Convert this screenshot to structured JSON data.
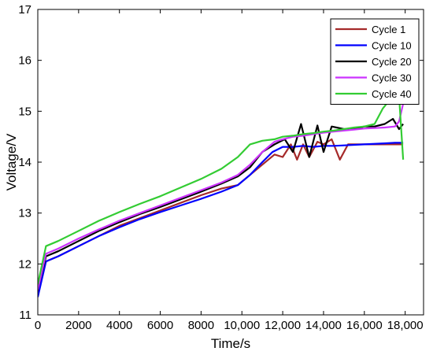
{
  "chart_data": {
    "type": "line",
    "title": "",
    "xlabel": "Time/s",
    "ylabel": "Voltage/V",
    "xlim": [
      0,
      18900
    ],
    "ylim": [
      11,
      17
    ],
    "xticks": [
      0,
      2000,
      4000,
      6000,
      8000,
      10000,
      12000,
      14000,
      16000,
      18000
    ],
    "xtick_labels": [
      "0",
      "2000",
      "4000",
      "6000",
      "8000",
      "10,000",
      "12,000",
      "14,000",
      "16,000",
      "18,000"
    ],
    "yticks": [
      11,
      12,
      13,
      14,
      15,
      16,
      17
    ],
    "ytick_labels": [
      "11",
      "12",
      "13",
      "14",
      "15",
      "16",
      "17"
    ],
    "grid": false,
    "legend": {
      "position": "top-right"
    },
    "series": [
      {
        "name": "Cycle 1",
        "color": "#a52a2a",
        "x": [
          0,
          400,
          1000,
          2000,
          3000,
          4000,
          5000,
          6000,
          7000,
          8000,
          9000,
          9800,
          10400,
          11000,
          11600,
          12000,
          12400,
          12700,
          13000,
          13300,
          13700,
          14000,
          14400,
          14800,
          15200,
          15600,
          16000,
          16500,
          17000,
          17500,
          17900
        ],
        "y": [
          11.45,
          12.05,
          12.15,
          12.35,
          12.55,
          12.75,
          12.9,
          13.05,
          13.2,
          13.35,
          13.48,
          13.55,
          13.75,
          13.95,
          14.15,
          14.1,
          14.35,
          14.05,
          14.35,
          14.1,
          14.4,
          14.35,
          14.45,
          14.05,
          14.35,
          14.35,
          14.35,
          14.35,
          14.35,
          14.35,
          14.35
        ]
      },
      {
        "name": "Cycle 10",
        "color": "#0000ff",
        "x": [
          0,
          400,
          1000,
          2000,
          3000,
          4000,
          5000,
          6000,
          7000,
          8000,
          9000,
          9800,
          10400,
          11000,
          11500,
          12000,
          12500,
          13000,
          13500,
          14000,
          14500,
          15000,
          16000,
          17000,
          17500,
          17900
        ],
        "y": [
          11.35,
          12.05,
          12.15,
          12.35,
          12.55,
          12.72,
          12.88,
          13.02,
          13.15,
          13.28,
          13.42,
          13.55,
          13.75,
          14.0,
          14.2,
          14.3,
          14.3,
          14.32,
          14.3,
          14.32,
          14.32,
          14.33,
          14.35,
          14.37,
          14.38,
          14.38
        ]
      },
      {
        "name": "Cycle 20",
        "color": "#000000",
        "x": [
          0,
          400,
          1000,
          2000,
          3000,
          4000,
          5000,
          6000,
          7000,
          8000,
          9000,
          9800,
          10400,
          11000,
          11600,
          12100,
          12500,
          12900,
          13300,
          13700,
          14000,
          14400,
          15000,
          15500,
          16000,
          16500,
          17000,
          17400,
          17700,
          17900
        ],
        "y": [
          11.5,
          12.15,
          12.25,
          12.45,
          12.65,
          12.82,
          12.98,
          13.12,
          13.27,
          13.42,
          13.58,
          13.72,
          13.9,
          14.2,
          14.35,
          14.45,
          14.2,
          14.75,
          14.1,
          14.72,
          14.2,
          14.7,
          14.65,
          14.65,
          14.7,
          14.7,
          14.75,
          14.85,
          14.65,
          14.75
        ]
      },
      {
        "name": "Cycle 30",
        "color": "#cc33ff",
        "x": [
          0,
          400,
          1000,
          2000,
          3000,
          4000,
          5000,
          6000,
          7000,
          8000,
          9000,
          9800,
          10400,
          11000,
          11600,
          12000,
          12500,
          13000,
          13500,
          14000,
          14500,
          15000,
          15500,
          16000,
          16500,
          17000,
          17500,
          17700,
          17900
        ],
        "y": [
          11.5,
          12.2,
          12.3,
          12.5,
          12.68,
          12.85,
          13.0,
          13.15,
          13.3,
          13.45,
          13.6,
          13.75,
          13.95,
          14.2,
          14.4,
          14.45,
          14.5,
          14.52,
          14.55,
          14.58,
          14.6,
          14.62,
          14.64,
          14.66,
          14.67,
          14.68,
          14.7,
          14.8,
          15.15
        ]
      },
      {
        "name": "Cycle 40",
        "color": "#33cc33",
        "x": [
          0,
          400,
          1000,
          2000,
          3000,
          4000,
          5000,
          6000,
          7000,
          8000,
          9000,
          9800,
          10400,
          11000,
          11600,
          12000,
          12500,
          13000,
          13500,
          14000,
          14500,
          15000,
          15500,
          16000,
          16500,
          16900,
          17100,
          17300,
          17500,
          17700,
          17900
        ],
        "y": [
          11.6,
          12.35,
          12.45,
          12.65,
          12.85,
          13.02,
          13.18,
          13.33,
          13.5,
          13.67,
          13.87,
          14.1,
          14.35,
          14.42,
          14.45,
          14.5,
          14.52,
          14.55,
          14.57,
          14.6,
          14.62,
          14.65,
          14.68,
          14.7,
          14.75,
          15.05,
          15.15,
          15.25,
          15.55,
          15.3,
          14.05
        ]
      }
    ]
  }
}
